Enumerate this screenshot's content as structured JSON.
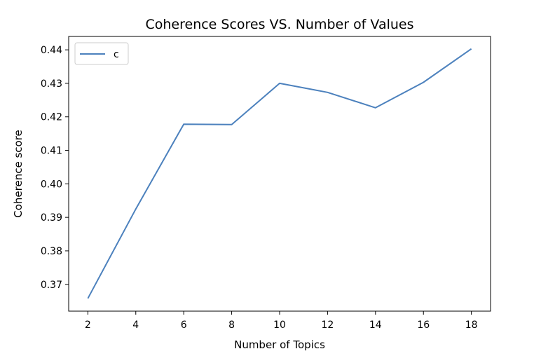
{
  "chart_data": {
    "type": "line",
    "title": "Coherence Scores VS. Number of Values",
    "xlabel": "Number of Topics",
    "ylabel": "Coherence score",
    "x": [
      2,
      4,
      6,
      8,
      10,
      12,
      14,
      16,
      18
    ],
    "series": [
      {
        "name": "c",
        "color": "#4c81bd",
        "values": [
          0.3658,
          0.3925,
          0.4178,
          0.4177,
          0.43,
          0.4273,
          0.4227,
          0.4303,
          0.4403
        ]
      }
    ],
    "xlim": [
      1.2,
      18.8
    ],
    "ylim": [
      0.362,
      0.444
    ],
    "xticks": [
      2,
      4,
      6,
      8,
      10,
      12,
      14,
      16,
      18
    ],
    "yticks": [
      0.37,
      0.38,
      0.39,
      0.4,
      0.41,
      0.42,
      0.43,
      0.44
    ],
    "ytick_labels": [
      "0.37",
      "0.38",
      "0.39",
      "0.40",
      "0.41",
      "0.42",
      "0.43",
      "0.44"
    ],
    "grid": false,
    "legend_position": "top-left"
  }
}
